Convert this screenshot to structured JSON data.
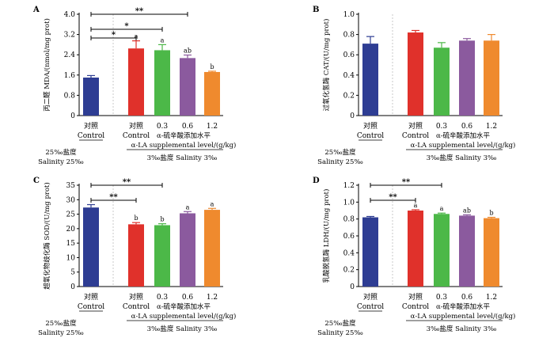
{
  "colors": {
    "control_salinity25": "#2e3d93",
    "control": "#e0312b",
    "la_0.3": "#4cb848",
    "la_0.6": "#8b5a9e",
    "la_1.2": "#ef8a2e",
    "error_bar": "#555555"
  },
  "common": {
    "group1_cn": "对照",
    "group1_en": "Control",
    "group2_cn": "对照",
    "group2_en": "Control",
    "doses": [
      "0.3",
      "0.6",
      "1.2"
    ],
    "la_cn": "α-硫辛酸添加水平",
    "la_en": "α-LA supplemental level/(g/kg)",
    "sal25_cn": "25‰盐度",
    "sal25_en": "Salinity 25‰",
    "sal3": "3‰盐度  Salinity 3‰"
  },
  "chart_data": [
    {
      "panel": "A",
      "type": "bar",
      "ylabel": "丙二醛 MDA/(nmol/mg prot)",
      "ylim": [
        0,
        4.0
      ],
      "yticks": [
        "0",
        "0.8",
        "1.6",
        "2.4",
        "3.2",
        "4.0"
      ],
      "categories": [
        "Control (Salinity 25‰)",
        "Control",
        "0.3",
        "0.6",
        "1.2"
      ],
      "values": [
        1.5,
        2.65,
        2.58,
        2.27,
        1.72
      ],
      "errors": [
        0.08,
        0.3,
        0.22,
        0.12,
        0.03
      ],
      "letters": [
        "",
        "a",
        "a",
        "ab",
        "b"
      ],
      "comparisons": [
        {
          "from": 0,
          "to": 1,
          "label": "*"
        },
        {
          "from": 0,
          "to": 2,
          "label": "*"
        },
        {
          "from": 0,
          "to": 3,
          "label": "**"
        }
      ]
    },
    {
      "panel": "B",
      "type": "bar",
      "ylabel": "过氧化氢酶 CAT/(U/mg prot)",
      "ylim": [
        0,
        1.0
      ],
      "yticks": [
        "0",
        "0.2",
        "0.4",
        "0.6",
        "0.8",
        "1.0"
      ],
      "categories": [
        "Control (Salinity 25‰)",
        "Control",
        "0.3",
        "0.6",
        "1.2"
      ],
      "values": [
        0.71,
        0.82,
        0.67,
        0.74,
        0.74
      ],
      "errors": [
        0.07,
        0.02,
        0.05,
        0.02,
        0.06
      ],
      "letters": [
        "",
        "",
        "",
        "",
        ""
      ],
      "comparisons": []
    },
    {
      "panel": "C",
      "type": "bar",
      "ylabel": "超氧化物歧化酶 SOD/(U/mg prot)",
      "ylim": [
        0,
        35
      ],
      "yticks": [
        "0",
        "5",
        "10",
        "15",
        "20",
        "25",
        "30",
        "35"
      ],
      "categories": [
        "Control (Salinity 25‰)",
        "Control",
        "0.3",
        "0.6",
        "1.2"
      ],
      "values": [
        27.3,
        21.5,
        21.2,
        25.3,
        26.5
      ],
      "errors": [
        1.0,
        0.6,
        0.5,
        0.6,
        0.5
      ],
      "letters": [
        "",
        "b",
        "b",
        "a",
        "a"
      ],
      "comparisons": [
        {
          "from": 0,
          "to": 1,
          "label": "**"
        },
        {
          "from": 0,
          "to": 2,
          "label": "**"
        }
      ]
    },
    {
      "panel": "D",
      "type": "bar",
      "ylabel": "乳酸脱氢酶 LDH/(U/mg prot)",
      "ylim": [
        0,
        1.2
      ],
      "yticks": [
        "0",
        "0.2",
        "0.4",
        "0.6",
        "0.8",
        "1.0",
        "1.2"
      ],
      "categories": [
        "Control (Salinity 25‰)",
        "Control",
        "0.3",
        "0.6",
        "1.2"
      ],
      "values": [
        0.82,
        0.9,
        0.86,
        0.84,
        0.81
      ],
      "errors": [
        0.01,
        0.01,
        0.01,
        0.01,
        0.01
      ],
      "letters": [
        "",
        "a",
        "a",
        "ab",
        "b"
      ],
      "comparisons": [
        {
          "from": 0,
          "to": 1,
          "label": "**"
        },
        {
          "from": 0,
          "to": 2,
          "label": "**"
        }
      ]
    }
  ]
}
